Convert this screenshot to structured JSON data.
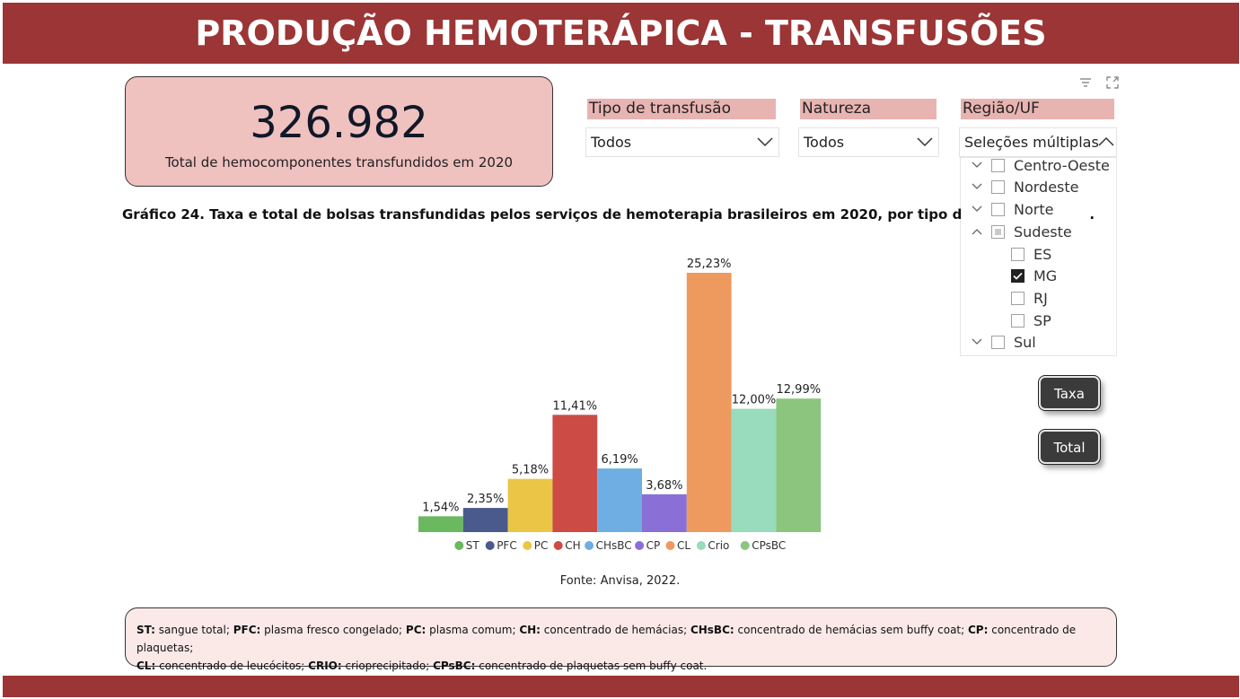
{
  "header": {
    "title": "PRODUÇÃO HEMOTERÁPICA - TRANSFUSÕES"
  },
  "kpi": {
    "value": "326.982",
    "label": "Total de hemocomponentes transfundidos em 2020"
  },
  "icons": {
    "filter": "filter-icon",
    "focus": "focus-mode-icon",
    "chevron": "chevron-down-icon"
  },
  "slicers": [
    {
      "title": "Tipo de transfusão",
      "value": "Todos"
    },
    {
      "title": "Natureza",
      "value": "Todos"
    },
    {
      "title": "Região/UF",
      "value": "Seleções múltiplas"
    }
  ],
  "region_tree": [
    {
      "label": "Centro-Oeste",
      "level": 0,
      "expanded": false,
      "state": "unchecked"
    },
    {
      "label": "Nordeste",
      "level": 0,
      "expanded": false,
      "state": "unchecked"
    },
    {
      "label": "Norte",
      "level": 0,
      "expanded": false,
      "state": "unchecked"
    },
    {
      "label": "Sudeste",
      "level": 0,
      "expanded": true,
      "state": "partial"
    },
    {
      "label": "ES",
      "level": 1,
      "state": "unchecked"
    },
    {
      "label": "MG",
      "level": 1,
      "state": "checked"
    },
    {
      "label": "RJ",
      "level": 1,
      "state": "unchecked"
    },
    {
      "label": "SP",
      "level": 1,
      "state": "unchecked"
    },
    {
      "label": "Sul",
      "level": 0,
      "expanded": false,
      "state": "unchecked"
    }
  ],
  "buttons": {
    "taxa": "Taxa",
    "total": "Total"
  },
  "chart_title": "Gráfico 24. Taxa e total de bolsas transfundidas pelos serviços de hemoterapia brasileiros em 2020, por tipo d",
  "chart_title_tail": ".",
  "chart_data": {
    "type": "bar",
    "categories": [
      "ST",
      "PFC",
      "PC",
      "CH",
      "CHsBC",
      "CP",
      "CL",
      "Crio",
      "CPsBC"
    ],
    "values": [
      1.54,
      2.35,
      5.18,
      11.41,
      6.19,
      3.68,
      25.23,
      12.0,
      12.99
    ],
    "data_labels": [
      "1,54%",
      "2,35%",
      "5,18%",
      "11,41%",
      "6,19%",
      "3,68%",
      "25,23%",
      "12,00%",
      "12,99%"
    ],
    "colors": [
      "#6ab95f",
      "#4a5a8c",
      "#ebc646",
      "#cd4b45",
      "#6eaee2",
      "#8a6fd6",
      "#ee9a5f",
      "#98dbbd",
      "#8bc57e"
    ],
    "legend": [
      "ST",
      "PFC",
      "PC",
      "CH",
      "CHsBC",
      "CP",
      "CL",
      "Crio",
      "CPsBC"
    ],
    "legend_position": "bottom",
    "ylim": [
      0,
      25.23
    ],
    "grid": false
  },
  "source": "Fonte: Anvisa, 2022.",
  "footnote": [
    {
      "abbr": "ST:",
      "text": " sangue total; "
    },
    {
      "abbr": "PFC:",
      "text": " plasma fresco congelado; "
    },
    {
      "abbr": "PC:",
      "text": " plasma comum; "
    },
    {
      "abbr": "CH:",
      "text": " concentrado de hemácias; "
    },
    {
      "abbr": "CHsBC:",
      "text": " concentrado de hemácias sem buffy coat; "
    },
    {
      "abbr": "CP:",
      "text": " concentrado de plaquetas;"
    },
    {
      "abbr": "CL:",
      "text": " concentrado de leucócitos; "
    },
    {
      "abbr": "CRIO:",
      "text": " crioprecipitado; "
    },
    {
      "abbr": "CPsBC:",
      "text": " concentrado de plaquetas sem buffy coat."
    }
  ]
}
